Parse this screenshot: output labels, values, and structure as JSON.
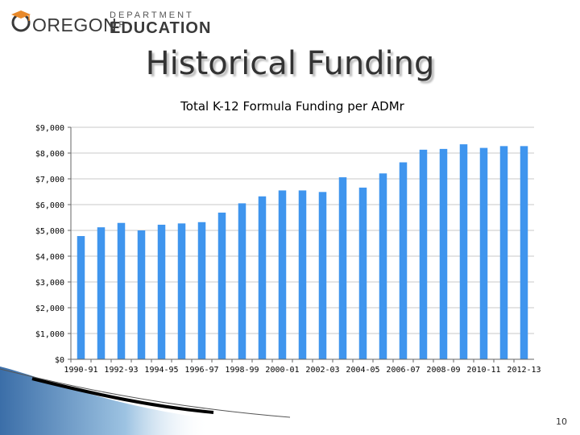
{
  "logo": {
    "oregon": "OREGON",
    "department_of": "DEPARTMENT OF",
    "education": "EDUCATION"
  },
  "slide_title": "Historical Funding",
  "page_number": "10",
  "colors": {
    "bar": "#3f95ee",
    "grid": "#c8c8c8",
    "axis": "#666666"
  },
  "chart_data": {
    "type": "bar",
    "title": "Total K-12 Formula Funding per ADMr",
    "xlabel": "",
    "ylabel": "",
    "ylim": [
      0,
      9000
    ],
    "grid": true,
    "yticks": [
      "$0",
      "$1,000",
      "$2,000",
      "$3,000",
      "$4,000",
      "$5,000",
      "$6,000",
      "$7,000",
      "$8,000",
      "$9,000"
    ],
    "categories": [
      "1990-91",
      "1991-92",
      "1992-93",
      "1993-94",
      "1994-95",
      "1995-96",
      "1996-97",
      "1997-98",
      "1998-99",
      "1999-00",
      "2000-01",
      "2001-02",
      "2002-03",
      "2003-04",
      "2004-05",
      "2005-06",
      "2006-07",
      "2007-08",
      "2008-09",
      "2009-10",
      "2010-11",
      "2011-12",
      "2012-13"
    ],
    "visible_category_labels": [
      "1990-91",
      "1992-93",
      "1994-95",
      "1996-97",
      "1998-99",
      "2000-01",
      "2002-03",
      "2004-05",
      "2006-07",
      "2008-09",
      "2010-11",
      "2012-13"
    ],
    "values": [
      4780,
      5120,
      5290,
      5000,
      5220,
      5270,
      5320,
      5690,
      6050,
      6320,
      6550,
      6550,
      6490,
      7060,
      6660,
      7210,
      7640,
      8130,
      8160,
      8340,
      8200,
      8270,
      8270
    ]
  }
}
